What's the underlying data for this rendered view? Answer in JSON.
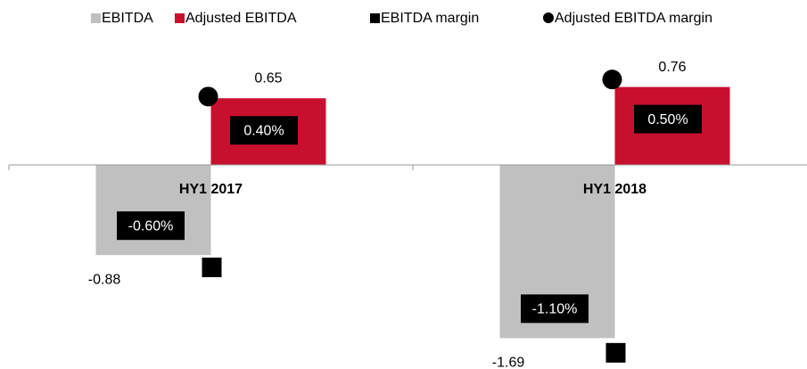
{
  "chart_data": {
    "type": "bar",
    "categories": [
      "HY1 2017",
      "HY1 2018"
    ],
    "series": [
      {
        "name": "EBITDA",
        "color": "#c0c0c0",
        "values": [
          -0.88,
          -1.69
        ]
      },
      {
        "name": "Adjusted EBITDA",
        "color": "#c8102e",
        "values": [
          0.65,
          0.76
        ]
      },
      {
        "name": "EBITDA margin",
        "color": "#000000",
        "axis": "y2",
        "marker": "square",
        "values": [
          -0.6,
          -1.1
        ],
        "value_labels": [
          "-0.60%",
          "-1.10%"
        ]
      },
      {
        "name": "Adjusted EBITDA margin",
        "color": "#000000",
        "axis": "y2",
        "marker": "circle",
        "values": [
          0.4,
          0.5
        ],
        "value_labels": [
          "0.40%",
          "0.50%"
        ]
      }
    ],
    "ylim": [
      -2,
      1
    ],
    "y2lim": [
      -1.2,
      0.6
    ],
    "legend": "top"
  }
}
